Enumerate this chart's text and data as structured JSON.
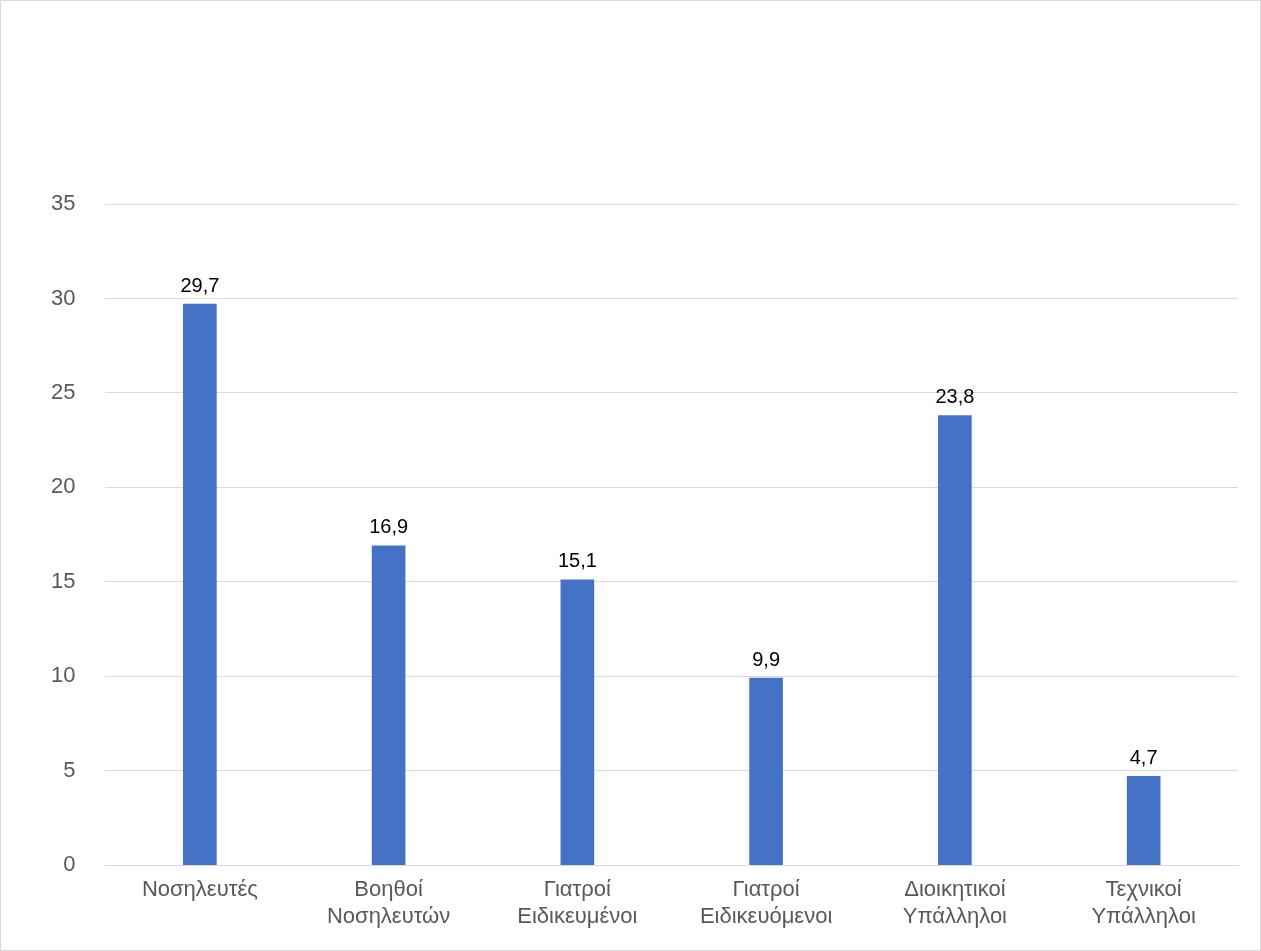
{
  "chart_data": {
    "type": "bar",
    "categories": [
      "Νοσηλευτές",
      "Βοηθοί Νοσηλευτών",
      "Γιατροί Ειδικευμένοι",
      "Γιατροί Ειδικευόμενοι",
      "Διοικητικοί Υπάλληλοι",
      "Τεχνικοί Υπάλληλοι"
    ],
    "values": [
      29.7,
      16.9,
      15.1,
      9.9,
      23.8,
      4.7
    ],
    "value_labels": [
      "29,7",
      "16,9",
      "15,1",
      "9,9",
      "23,8",
      "4,7"
    ],
    "color": "#4472c4",
    "ylim": [
      0,
      35
    ],
    "yticks": [
      0,
      5,
      10,
      15,
      20,
      25,
      30,
      35
    ],
    "grid": "y",
    "legend": false
  }
}
